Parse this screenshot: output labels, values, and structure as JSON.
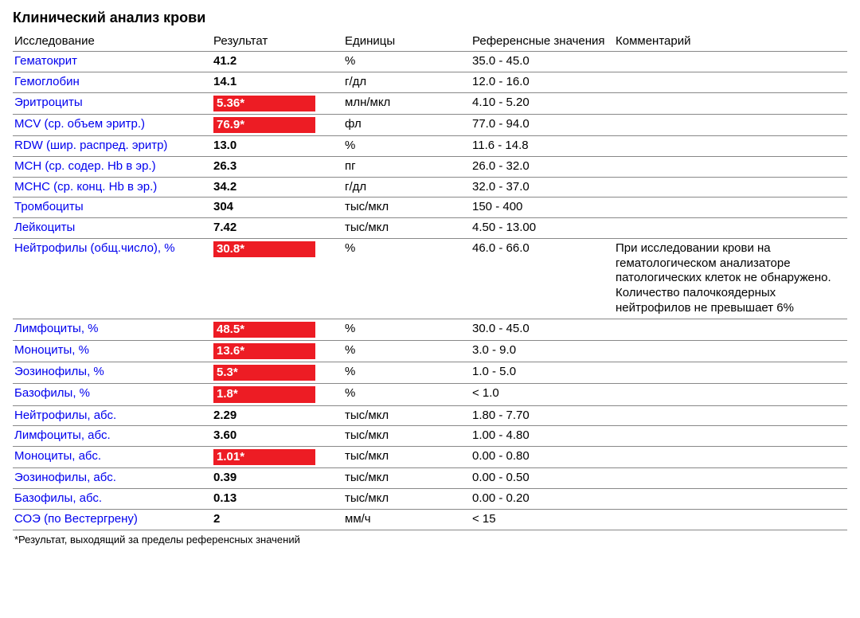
{
  "title": "Клинический анализ крови",
  "columns": [
    "Исследование",
    "Результат",
    "Единицы",
    "Референсные значения",
    "Комментарий"
  ],
  "colors": {
    "link": "#0000ee",
    "flag_bg": "#ed1c24",
    "flag_text": "#ffffff",
    "border": "#888888"
  },
  "footnote": "*Результат, выходящий за пределы референсных значений",
  "rows": [
    {
      "test": "Гематокрит",
      "result": "41.2",
      "flagged": false,
      "units": "%",
      "ref": "35.0 - 45.0",
      "comment": ""
    },
    {
      "test": "Гемоглобин",
      "result": "14.1",
      "flagged": false,
      "units": "г/дл",
      "ref": "12.0 - 16.0",
      "comment": ""
    },
    {
      "test": "Эритроциты",
      "result": "5.36*",
      "flagged": true,
      "units": "млн/мкл",
      "ref": "4.10 - 5.20",
      "comment": ""
    },
    {
      "test": "MCV (ср. объем эритр.)",
      "result": "76.9*",
      "flagged": true,
      "units": "фл",
      "ref": "77.0 - 94.0",
      "comment": ""
    },
    {
      "test": "RDW (шир. распред. эритр)",
      "result": "13.0",
      "flagged": false,
      "units": "%",
      "ref": "11.6 - 14.8",
      "comment": ""
    },
    {
      "test": "MCH (ср. содер. Hb в эр.)",
      "result": "26.3",
      "flagged": false,
      "units": "пг",
      "ref": "26.0 - 32.0",
      "comment": ""
    },
    {
      "test": "MCHC (ср. конц. Hb в эр.)",
      "result": "34.2",
      "flagged": false,
      "units": "г/дл",
      "ref": "32.0 - 37.0",
      "comment": ""
    },
    {
      "test": "Тромбоциты",
      "result": "304",
      "flagged": false,
      "units": "тыс/мкл",
      "ref": "150 - 400",
      "comment": ""
    },
    {
      "test": "Лейкоциты",
      "result": "7.42",
      "flagged": false,
      "units": "тыс/мкл",
      "ref": "4.50 - 13.00",
      "comment": ""
    },
    {
      "test": "Нейтрофилы (общ.число), %",
      "result": "30.8*",
      "flagged": true,
      "units": "%",
      "ref": "46.0 - 66.0",
      "comment": "При исследовании крови на гематологическом анализаторе патологических клеток не обнаружено. Количество палочкоядерных нейтрофилов не превышает 6%"
    },
    {
      "test": "Лимфоциты, %",
      "result": "48.5*",
      "flagged": true,
      "units": "%",
      "ref": "30.0 - 45.0",
      "comment": ""
    },
    {
      "test": "Моноциты, %",
      "result": "13.6*",
      "flagged": true,
      "units": "%",
      "ref": "3.0 - 9.0",
      "comment": ""
    },
    {
      "test": "Эозинофилы, %",
      "result": "5.3*",
      "flagged": true,
      "units": "%",
      "ref": "1.0 - 5.0",
      "comment": ""
    },
    {
      "test": "Базофилы, %",
      "result": "1.8*",
      "flagged": true,
      "units": "%",
      "ref": "< 1.0",
      "comment": ""
    },
    {
      "test": "Нейтрофилы, абс.",
      "result": "2.29",
      "flagged": false,
      "units": "тыс/мкл",
      "ref": "1.80 - 7.70",
      "comment": ""
    },
    {
      "test": "Лимфоциты, абс.",
      "result": "3.60",
      "flagged": false,
      "units": "тыс/мкл",
      "ref": "1.00 - 4.80",
      "comment": ""
    },
    {
      "test": "Моноциты, абс.",
      "result": "1.01*",
      "flagged": true,
      "units": "тыс/мкл",
      "ref": "0.00 - 0.80",
      "comment": ""
    },
    {
      "test": "Эозинофилы, абс.",
      "result": "0.39",
      "flagged": false,
      "units": "тыс/мкл",
      "ref": "0.00 - 0.50",
      "comment": ""
    },
    {
      "test": "Базофилы, абс.",
      "result": "0.13",
      "flagged": false,
      "units": "тыс/мкл",
      "ref": "0.00 - 0.20",
      "comment": ""
    },
    {
      "test": "СОЭ (по Вестергрену)",
      "result": "2",
      "flagged": false,
      "units": "мм/ч",
      "ref": "< 15",
      "comment": ""
    }
  ]
}
